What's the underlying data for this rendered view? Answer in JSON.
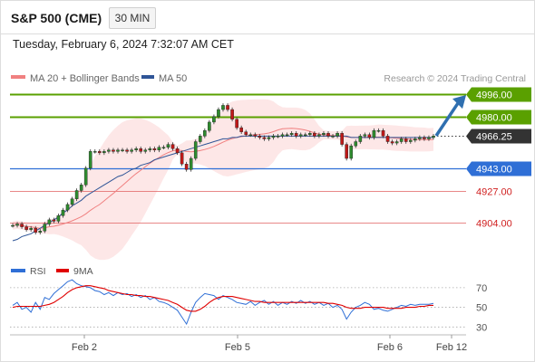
{
  "header": {
    "title": "S&P 500 (CME)",
    "timeframe": "30 MIN"
  },
  "datetime": "Tuesday, February 6, 2024 7:32:07 AM CET",
  "credit": "Research © 2024 Trading Central",
  "colors": {
    "bollinger": "#f08080",
    "ma50": "#2f5597",
    "green": "#5aa000",
    "blue": "#2f6fd6",
    "red": "#e06060",
    "rsi": "#2f6fd6",
    "rsi_ma": "#e00000",
    "arrow": "#2f6fb0",
    "candle_up": "#2e8b2e",
    "candle_down": "#c01818"
  },
  "chart_data": [
    {
      "type": "line",
      "subtype": "candlestick",
      "title": "",
      "x_tick_labels": [
        "Feb 2",
        "Feb 5",
        "Feb 6",
        "Feb 12"
      ],
      "ylim": [
        4880,
        4998
      ],
      "legend": [
        {
          "name": "MA 20 + Bollinger Bands",
          "color": "#f08080"
        },
        {
          "name": "MA 50",
          "color": "#2f5597"
        }
      ],
      "price_series": [
        4902,
        4903,
        4901,
        4899,
        4900,
        4897,
        4898,
        4903,
        4906,
        4905,
        4909,
        4913,
        4917,
        4921,
        4927,
        4931,
        4943,
        4955,
        4955,
        4954,
        4955,
        4956,
        4955,
        4956,
        4956,
        4955,
        4956,
        4957,
        4955,
        4956,
        4957,
        4956,
        4958,
        4958,
        4960,
        4957,
        4954,
        4946,
        4942,
        4950,
        4962,
        4966,
        4970,
        4976,
        4980,
        4985,
        4988,
        4985,
        4978,
        4972,
        4969,
        4967,
        4967,
        4966,
        4965,
        4964,
        4965,
        4966,
        4966,
        4967,
        4967,
        4968,
        4966,
        4967,
        4967,
        4968,
        4966,
        4967,
        4968,
        4966,
        4966,
        4968,
        4960,
        4950,
        4959,
        4962,
        4966,
        4967,
        4965,
        4970,
        4970,
        4966,
        4962,
        4961,
        4962,
        4964,
        4962,
        4963,
        4964,
        4965,
        4964,
        4965,
        4966
      ],
      "ma50_series": [
        4891,
        4892,
        4894,
        4895,
        4896,
        4898,
        4900,
        4902,
        4904,
        4906,
        4908,
        4911,
        4913,
        4916,
        4918,
        4920,
        4923,
        4925,
        4927,
        4929,
        4931,
        4933,
        4935,
        4937,
        4938,
        4940,
        4942,
        4943,
        4945,
        4946,
        4947,
        4949,
        4950,
        4951,
        4952,
        4953,
        4954,
        4955,
        4956,
        4957,
        4958,
        4959,
        4960,
        4961,
        4962,
        4963,
        4964,
        4964,
        4965,
        4965,
        4966,
        4966,
        4966,
        4966,
        4966,
        4966,
        4966,
        4966,
        4966,
        4966,
        4966,
        4966,
        4966,
        4966,
        4966,
        4966,
        4966,
        4966,
        4966,
        4966,
        4966,
        4966,
        4966,
        4966,
        4965,
        4965,
        4965,
        4965,
        4965,
        4965,
        4965,
        4965,
        4965,
        4965,
        4965,
        4965,
        4965,
        4965,
        4965,
        4965,
        4965,
        4965,
        4965
      ],
      "projection_arrow": {
        "from": 4966.25,
        "to": 4996.0
      },
      "levels": [
        {
          "value": 4996.0,
          "label": "4996.00",
          "kind": "resistance"
        },
        {
          "value": 4980.0,
          "label": "4980.00",
          "kind": "resistance"
        },
        {
          "value": 4966.25,
          "label": "4966.25",
          "kind": "last"
        },
        {
          "value": 4943.0,
          "label": "4943.00",
          "kind": "pivot"
        },
        {
          "value": 4927.0,
          "label": "4927.00",
          "kind": "support"
        },
        {
          "value": 4904.0,
          "label": "4904.00",
          "kind": "support"
        }
      ]
    },
    {
      "type": "line",
      "title": "",
      "ylim": [
        22,
        80
      ],
      "y_ticks": [
        70,
        50,
        30
      ],
      "legend": [
        {
          "name": "RSI",
          "color": "#2f6fd6"
        },
        {
          "name": "9MA",
          "color": "#e00000"
        }
      ],
      "series": [
        {
          "name": "RSI",
          "values": [
            52,
            55,
            48,
            50,
            45,
            55,
            48,
            60,
            58,
            64,
            68,
            72,
            76,
            78,
            74,
            72,
            71,
            70,
            67,
            66,
            63,
            65,
            62,
            65,
            63,
            64,
            61,
            63,
            60,
            62,
            58,
            60,
            56,
            55,
            53,
            50,
            47,
            40,
            33,
            45,
            55,
            60,
            64,
            63,
            62,
            58,
            62,
            60,
            58,
            55,
            54,
            53,
            56,
            52,
            55,
            57,
            53,
            56,
            52,
            55,
            53,
            56,
            54,
            57,
            54,
            56,
            53,
            55,
            52,
            54,
            50,
            52,
            48,
            38,
            45,
            50,
            52,
            55,
            53,
            48,
            49,
            47,
            46,
            48,
            50,
            52,
            51,
            53,
            52,
            53,
            53,
            53,
            54
          ]
        },
        {
          "name": "9MA",
          "values": [
            50,
            51,
            51,
            51,
            51,
            51,
            51,
            52,
            53,
            55,
            58,
            61,
            65,
            68,
            70,
            71,
            72,
            72,
            71,
            70,
            69,
            67,
            66,
            65,
            64,
            63,
            63,
            62,
            62,
            61,
            61,
            60,
            59,
            58,
            57,
            55,
            53,
            50,
            47,
            46,
            46,
            48,
            51,
            55,
            58,
            60,
            61,
            61,
            61,
            60,
            59,
            58,
            57,
            56,
            56,
            55,
            55,
            55,
            55,
            55,
            55,
            55,
            55,
            55,
            55,
            55,
            55,
            55,
            55,
            54,
            54,
            53,
            52,
            50,
            49,
            49,
            49,
            50,
            50,
            50,
            50,
            50,
            49,
            49,
            49,
            49,
            50,
            50,
            50,
            51,
            51,
            52,
            52
          ]
        }
      ]
    }
  ]
}
